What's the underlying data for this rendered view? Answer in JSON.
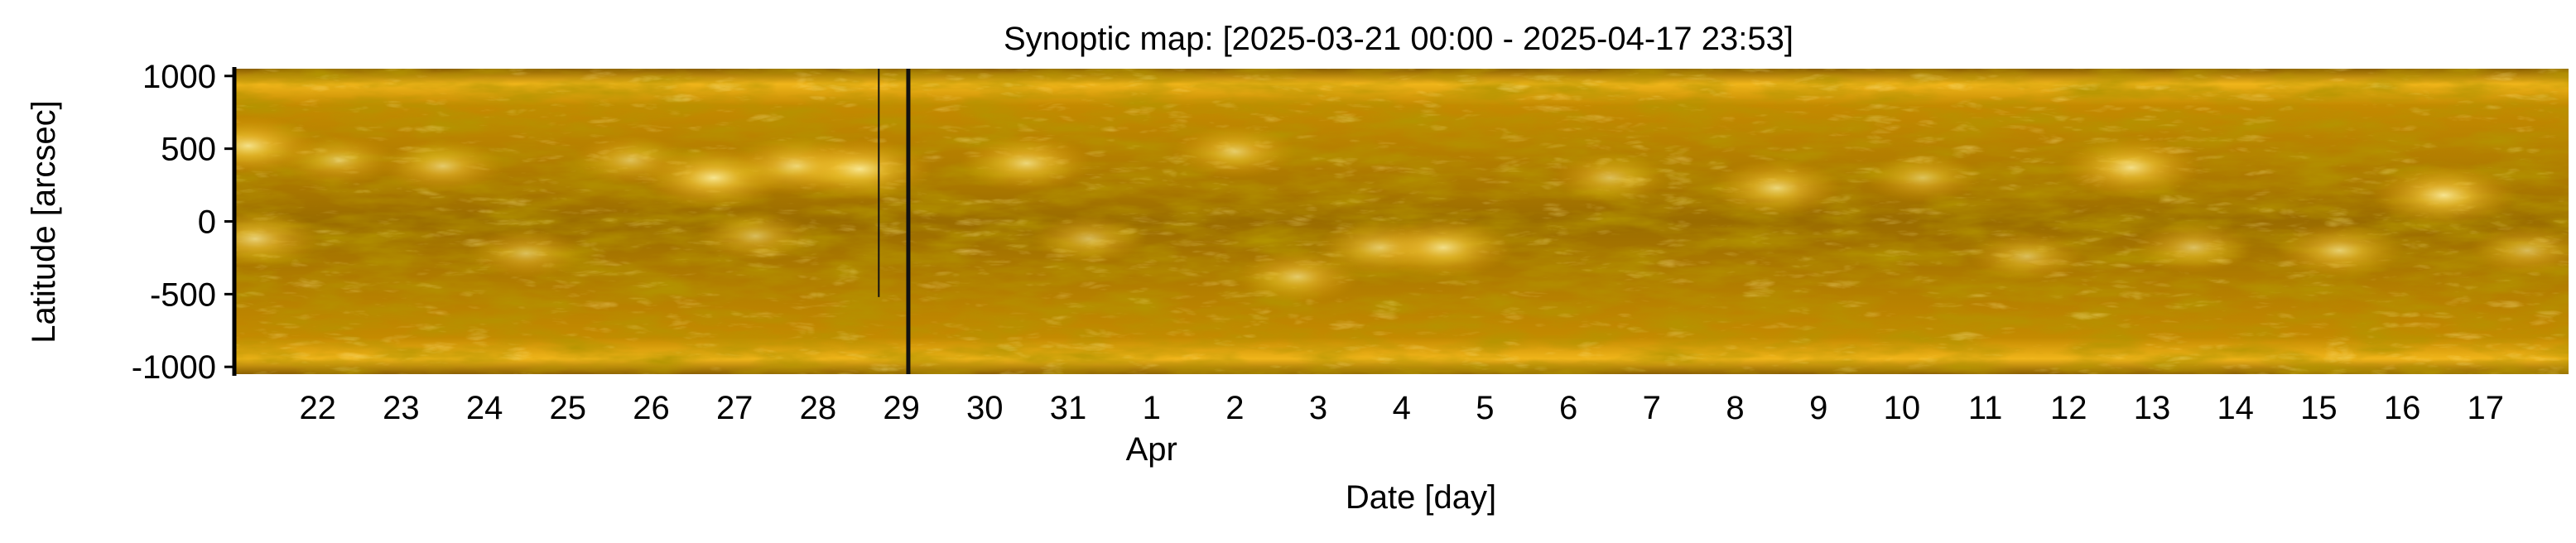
{
  "chart_data": {
    "type": "heatmap",
    "title": "Synoptic map: [2025-03-21 00:00 - 2025-04-17 23:53]",
    "xlabel": "Date [day]",
    "ylabel": "Latitude [arcsec]",
    "x_range": [
      "2025-03-21 00:00",
      "2025-04-17 23:53"
    ],
    "ylim": [
      -1050,
      1050
    ],
    "x_ticks": [
      {
        "date": "2025-03-22",
        "label": "22"
      },
      {
        "date": "2025-03-23",
        "label": "23"
      },
      {
        "date": "2025-03-24",
        "label": "24"
      },
      {
        "date": "2025-03-25",
        "label": "25"
      },
      {
        "date": "2025-03-26",
        "label": "26"
      },
      {
        "date": "2025-03-27",
        "label": "27"
      },
      {
        "date": "2025-03-28",
        "label": "28"
      },
      {
        "date": "2025-03-29",
        "label": "29"
      },
      {
        "date": "2025-03-30",
        "label": "30"
      },
      {
        "date": "2025-03-31",
        "label": "31"
      },
      {
        "date": "2025-04-01",
        "label": "1"
      },
      {
        "date": "2025-04-02",
        "label": "2"
      },
      {
        "date": "2025-04-03",
        "label": "3"
      },
      {
        "date": "2025-04-04",
        "label": "4"
      },
      {
        "date": "2025-04-05",
        "label": "5"
      },
      {
        "date": "2025-04-06",
        "label": "6"
      },
      {
        "date": "2025-04-07",
        "label": "7"
      },
      {
        "date": "2025-04-08",
        "label": "8"
      },
      {
        "date": "2025-04-09",
        "label": "9"
      },
      {
        "date": "2025-04-10",
        "label": "10"
      },
      {
        "date": "2025-04-11",
        "label": "11"
      },
      {
        "date": "2025-04-12",
        "label": "12"
      },
      {
        "date": "2025-04-13",
        "label": "13"
      },
      {
        "date": "2025-04-14",
        "label": "14"
      },
      {
        "date": "2025-04-15",
        "label": "15"
      },
      {
        "date": "2025-04-16",
        "label": "16"
      },
      {
        "date": "2025-04-17",
        "label": "17"
      }
    ],
    "month_label": {
      "date": "2025-04-01",
      "label": "Apr"
    },
    "y_ticks": [
      {
        "value": 1000,
        "label": "1000"
      },
      {
        "value": 500,
        "label": "500"
      },
      {
        "value": 0,
        "label": "0"
      },
      {
        "value": -500,
        "label": "-500"
      },
      {
        "value": -1000,
        "label": "-1000"
      }
    ],
    "colormap": [
      "#6e4a00",
      "#a77200",
      "#d69b08",
      "#f2c028",
      "#ffe070"
    ],
    "data_gaps": [
      {
        "date": "2025-03-28 17:30",
        "lat_range": [
          -520,
          1050
        ]
      },
      {
        "date": "2025-03-29 02:00",
        "lat_range": [
          -1050,
          1050
        ]
      }
    ],
    "bright_regions": [
      {
        "date": "2025-03-21 04:00",
        "lat": 520,
        "intensity": 0.9
      },
      {
        "date": "2025-03-21 06:00",
        "lat": -120,
        "intensity": 0.8
      },
      {
        "date": "2025-03-22 06:00",
        "lat": 420,
        "intensity": 0.6
      },
      {
        "date": "2025-03-23 12:00",
        "lat": 380,
        "intensity": 0.7
      },
      {
        "date": "2025-03-24 12:00",
        "lat": -220,
        "intensity": 0.6
      },
      {
        "date": "2025-03-25 18:00",
        "lat": 420,
        "intensity": 0.6
      },
      {
        "date": "2025-03-26 18:00",
        "lat": 300,
        "intensity": 0.95
      },
      {
        "date": "2025-03-27 18:00",
        "lat": 380,
        "intensity": 0.85
      },
      {
        "date": "2025-03-27 06:00",
        "lat": -100,
        "intensity": 0.6
      },
      {
        "date": "2025-03-28 12:00",
        "lat": 360,
        "intensity": 0.95
      },
      {
        "date": "2025-03-30 12:00",
        "lat": 400,
        "intensity": 0.8
      },
      {
        "date": "2025-03-31 06:00",
        "lat": -120,
        "intensity": 0.6
      },
      {
        "date": "2025-04-02 00:00",
        "lat": 480,
        "intensity": 0.7
      },
      {
        "date": "2025-04-02 18:00",
        "lat": -380,
        "intensity": 0.7
      },
      {
        "date": "2025-04-03 18:00",
        "lat": -180,
        "intensity": 0.75
      },
      {
        "date": "2025-04-04 12:00",
        "lat": -180,
        "intensity": 0.9
      },
      {
        "date": "2025-04-06 12:00",
        "lat": 300,
        "intensity": 0.6
      },
      {
        "date": "2025-04-08 12:00",
        "lat": 230,
        "intensity": 0.8
      },
      {
        "date": "2025-04-10 06:00",
        "lat": 300,
        "intensity": 0.6
      },
      {
        "date": "2025-04-11 12:00",
        "lat": -240,
        "intensity": 0.6
      },
      {
        "date": "2025-04-12 18:00",
        "lat": 370,
        "intensity": 0.9
      },
      {
        "date": "2025-04-13 12:00",
        "lat": -180,
        "intensity": 0.65
      },
      {
        "date": "2025-04-15 06:00",
        "lat": -200,
        "intensity": 0.75
      },
      {
        "date": "2025-04-16 12:00",
        "lat": 180,
        "intensity": 0.95
      },
      {
        "date": "2025-04-17 12:00",
        "lat": -200,
        "intensity": 0.6
      }
    ]
  }
}
